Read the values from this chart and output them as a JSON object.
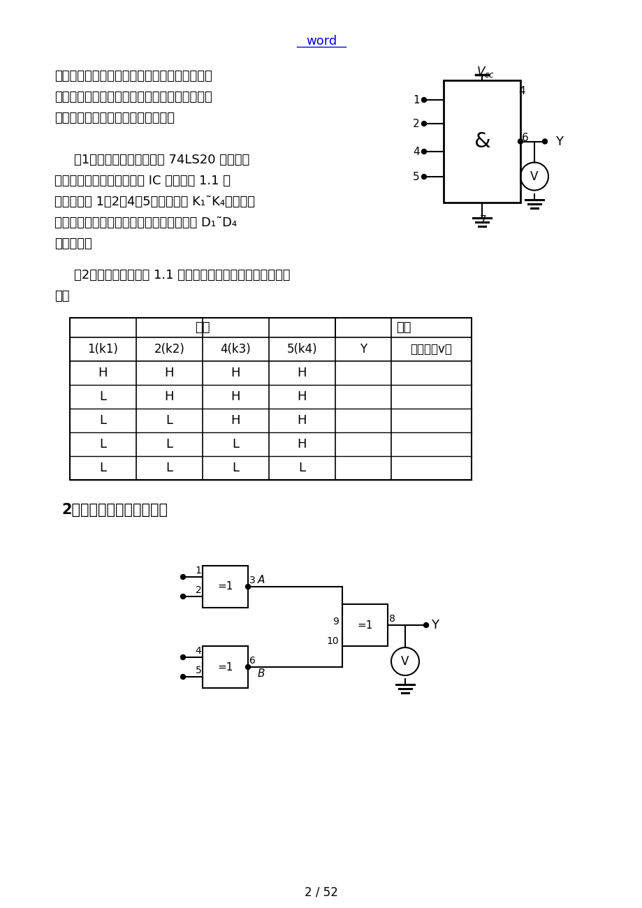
{
  "page_title": "word",
  "bg_color": "#ffffff",
  "text_color": "#000000",
  "link_color": "#0000ff",
  "para1": "注意集成块芯片不能插反。线接好后经实验指导",
  "para1b": "教师检查无误方可通电实验。实验中改动接线须",
  "para1c": "先断开电源，接好线后再通电实验。",
  "para2": "〔1〕选用双四输入与非门 74LS20 一片，插",
  "para2b": "入数字电路实验箱中对应的 IC 座，按图 1.1 接",
  "para2c": "线、输入端 1、2、4、5、分别接到 K₁˜K₄的逻辑开",
  "para2d": "关输出插口，输出端接电平显示发光二极管 D₁˜D₄",
  "para2e": "任意一个。",
  "para3": "〔2〕将逻辑开关按表 1.1 的状态，分别测输出电压与逻辑状",
  "para3b": "态。",
  "section2": "2．异或门逻辑功能的测试",
  "page_num": "2 / 52",
  "table_header1": "输入",
  "table_header2": "输出",
  "table_col_headers": [
    "1(k1)",
    "2(k2)",
    "4(k3)",
    "5(k4)",
    "Y",
    "电压值（v）"
  ],
  "table_data": [
    [
      "H",
      "H",
      "H",
      "H",
      "",
      ""
    ],
    [
      "L",
      "H",
      "H",
      "H",
      "",
      ""
    ],
    [
      "L",
      "L",
      "H",
      "H",
      "",
      ""
    ],
    [
      "L",
      "L",
      "L",
      "H",
      "",
      ""
    ],
    [
      "L",
      "L",
      "L",
      "L",
      "",
      ""
    ]
  ]
}
